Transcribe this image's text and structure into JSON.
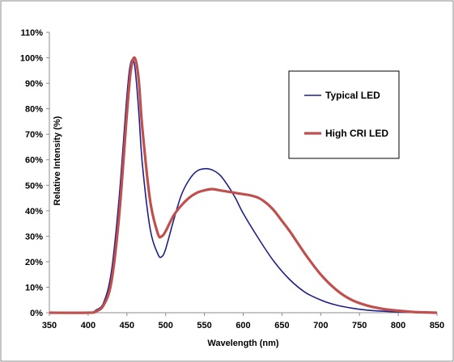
{
  "chart_data": {
    "type": "line",
    "xlabel": "Wavelength (nm)",
    "ylabel": "Relative Intensity (%)",
    "xlim": [
      350,
      850
    ],
    "ylim": [
      0,
      110
    ],
    "xticks": [
      "350",
      "400",
      "450",
      "500",
      "550",
      "600",
      "650",
      "700",
      "750",
      "800",
      "850"
    ],
    "yticks": [
      "0%",
      "10%",
      "20%",
      "30%",
      "40%",
      "50%",
      "60%",
      "70%",
      "80%",
      "90%",
      "100%",
      "110%"
    ],
    "grid": false,
    "legend_position": "top-right",
    "series": [
      {
        "name": "Typical LED",
        "color": "#1f1f8a",
        "x": [
          350,
          400,
          410,
          420,
          430,
          440,
          450,
          455,
          460,
          465,
          470,
          480,
          490,
          495,
          500,
          510,
          520,
          530,
          540,
          550,
          560,
          570,
          580,
          590,
          600,
          620,
          640,
          660,
          680,
          700,
          720,
          740,
          760,
          780,
          800,
          820,
          850
        ],
        "y": [
          0,
          0,
          1,
          4,
          16,
          45,
          85,
          98,
          97,
          80,
          58,
          33,
          23,
          22,
          25,
          36,
          46,
          52,
          55.5,
          56.5,
          56,
          54,
          50,
          45,
          39,
          29,
          20,
          13,
          8,
          5,
          3,
          1.8,
          1,
          0.6,
          0.3,
          0.1,
          0
        ]
      },
      {
        "name": "High CRI LED",
        "color": "#c0504d",
        "x": [
          350,
          400,
          410,
          420,
          430,
          440,
          450,
          455,
          460,
          465,
          470,
          480,
          490,
          495,
          500,
          510,
          520,
          530,
          540,
          550,
          560,
          570,
          580,
          590,
          600,
          610,
          620,
          630,
          640,
          650,
          660,
          680,
          700,
          720,
          740,
          760,
          780,
          800,
          820,
          850
        ],
        "y": [
          0,
          0,
          0.5,
          3,
          12,
          38,
          78,
          95,
          100,
          92,
          72,
          44,
          31,
          30,
          32,
          38,
          42,
          45,
          47,
          48,
          48.5,
          48,
          47.5,
          47,
          46.5,
          46,
          45,
          43,
          40,
          36,
          32,
          23,
          15,
          9,
          5,
          2.8,
          1.5,
          0.8,
          0.3,
          0
        ]
      }
    ]
  }
}
